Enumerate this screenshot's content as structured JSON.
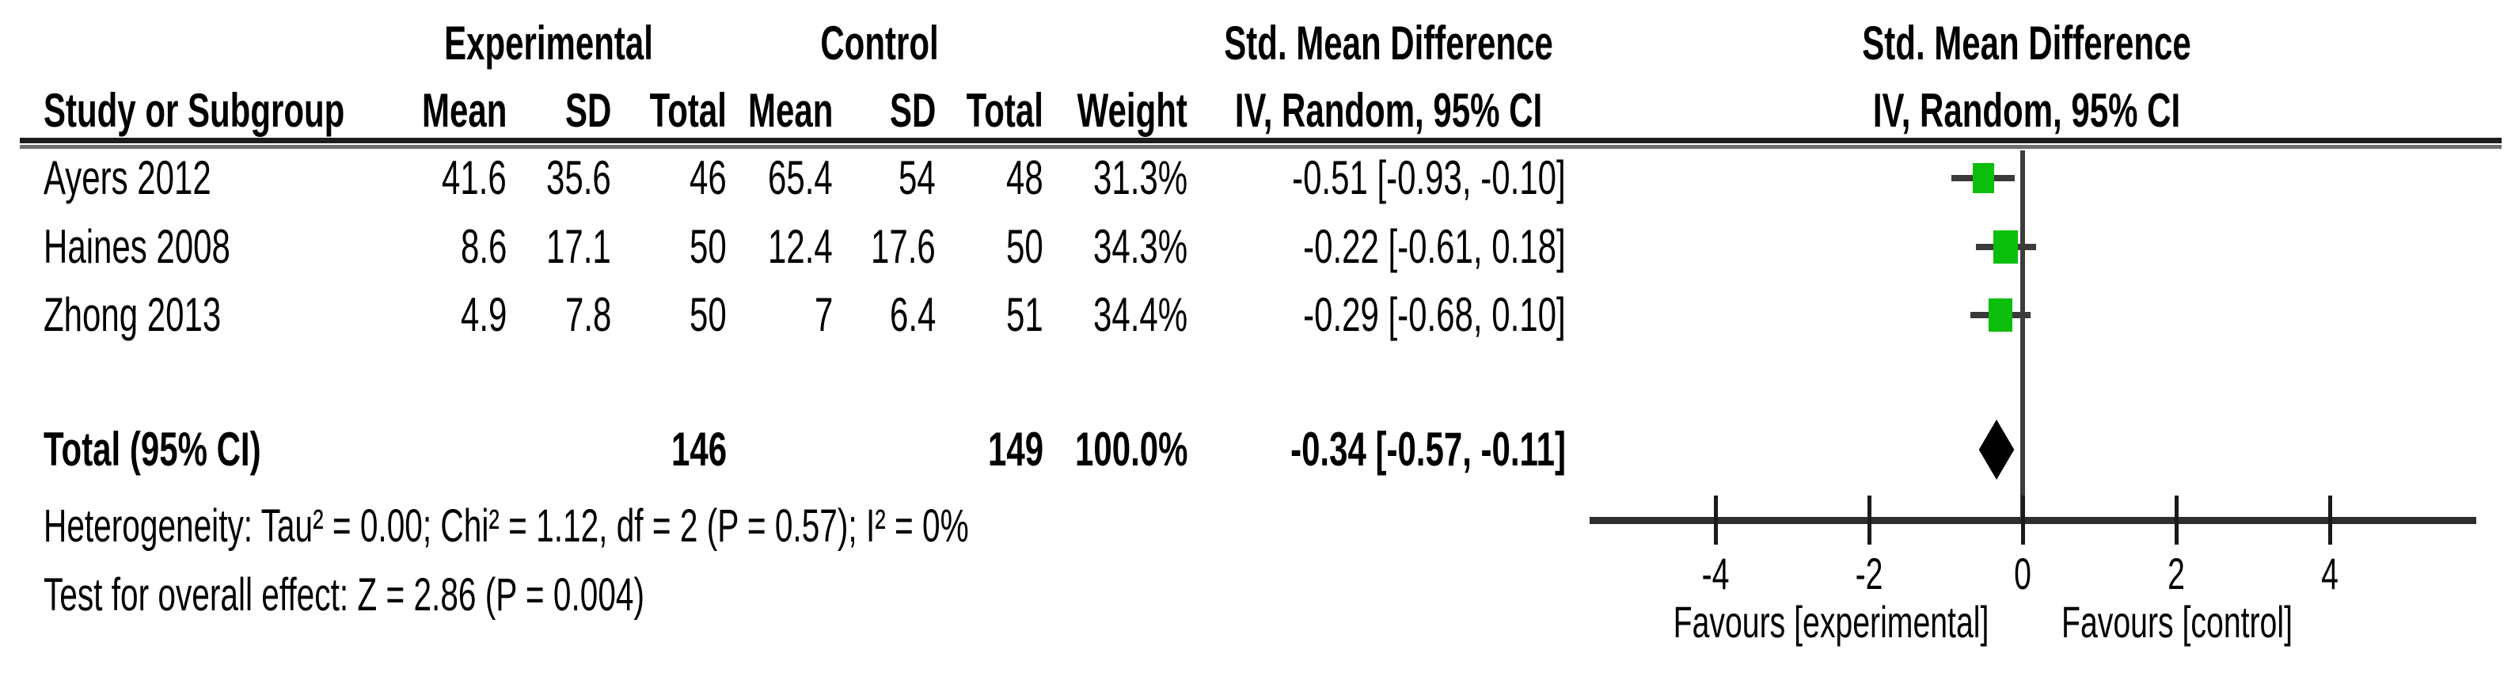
{
  "figure": {
    "group_headers": {
      "experimental": "Experimental",
      "control": "Control"
    },
    "effect_header": {
      "line1": "Std. Mean Difference",
      "line2": "IV, Random, 95% CI"
    },
    "plot_header": {
      "line1": "Std. Mean Difference",
      "line2": "IV, Random, 95% CI"
    },
    "columns": {
      "study": "Study or Subgroup",
      "mean": "Mean",
      "sd": "SD",
      "total": "Total",
      "weight": "Weight"
    },
    "rows": [
      {
        "study": "Ayers 2012",
        "mean_e": "41.6",
        "sd_e": "35.6",
        "total_e": "46",
        "mean_c": "65.4",
        "sd_c": "54",
        "total_c": "48",
        "weight": "31.3%",
        "ci": "-0.51 [-0.93, -0.10]"
      },
      {
        "study": "Haines 2008",
        "mean_e": "8.6",
        "sd_e": "17.1",
        "total_e": "50",
        "mean_c": "12.4",
        "sd_c": "17.6",
        "total_c": "50",
        "weight": "34.3%",
        "ci": "-0.22 [-0.61, 0.18]"
      },
      {
        "study": "Zhong 2013",
        "mean_e": "4.9",
        "sd_e": "7.8",
        "total_e": "50",
        "mean_c": "7",
        "sd_c": "6.4",
        "total_c": "51",
        "weight": "34.4%",
        "ci": "-0.29 [-0.68, 0.10]"
      }
    ],
    "total_row": {
      "label": "Total (95% CI)",
      "total_e": "146",
      "total_c": "149",
      "weight": "100.0%",
      "ci": "-0.34 [-0.57, -0.11]"
    },
    "footnotes": {
      "heterogeneity": "Heterogeneity: Tau² = 0.00; Chi² = 1.12, df = 2 (P = 0.57); I² = 0%",
      "overall_effect": "Test for overall effect: Z = 2.86 (P = 0.004)"
    }
  },
  "chart_data": {
    "type": "forest",
    "title": "Std. Mean Difference",
    "method": "IV, Random, 95% CI",
    "x_axis": {
      "ticks": [
        -4,
        -2,
        0,
        2,
        4
      ],
      "min": -5.6,
      "max": 5.9,
      "zero_ref_line": 0
    },
    "studies": [
      {
        "name": "Ayers 2012",
        "smd": -0.51,
        "ci_low": -0.93,
        "ci_high": -0.1,
        "weight_pct": 31.3
      },
      {
        "name": "Haines 2008",
        "smd": -0.22,
        "ci_low": -0.61,
        "ci_high": 0.18,
        "weight_pct": 34.3
      },
      {
        "name": "Zhong 2013",
        "smd": -0.29,
        "ci_low": -0.68,
        "ci_high": 0.1,
        "weight_pct": 34.4
      }
    ],
    "total": {
      "label": "Total (95% CI)",
      "smd": -0.34,
      "ci_low": -0.57,
      "ci_high": -0.11,
      "weight_pct": 100.0
    },
    "favours_left": "Favours [experimental]",
    "favours_right": "Favours [control]",
    "colors": {
      "marker": "#0cbe0c",
      "diamond": "#000000",
      "lines": "#3a3a3a",
      "axis": "#2e2e2e"
    }
  }
}
